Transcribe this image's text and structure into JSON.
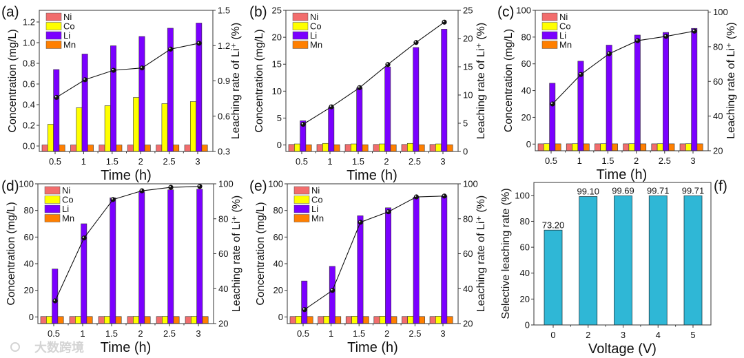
{
  "watermark": "大数跨境",
  "colors": {
    "Ni": "#f26d6d",
    "Co": "#ffff00",
    "Li": "#7a00ff",
    "Mn": "#ff7f00",
    "bar_f": "#2fb7d6",
    "line": "#111111"
  },
  "chart_data": [
    {
      "panel": "(a)",
      "type": "bar+line",
      "categories": [
        "0.5",
        "1",
        "1.5",
        "2",
        "2.5",
        "3"
      ],
      "xlabel": "Time (h)",
      "ylabel": "Concentration (mg/L)",
      "y2label": "Leaching rate of Li⁺ (%)",
      "ylim": [
        -0.053,
        1.313
      ],
      "y2lim": [
        0.3,
        1.5
      ],
      "yticks": [
        "0.0",
        "0.2",
        "0.4",
        "0.6",
        "0.8",
        "1.0",
        "1.2"
      ],
      "y2ticks": [
        "0.3",
        "0.6",
        "0.9",
        "1.2",
        "1.5"
      ],
      "legend": [
        "Ni",
        "Co",
        "Li",
        "Mn"
      ],
      "series": [
        {
          "name": "Ni",
          "values": [
            0.01,
            0.01,
            0.01,
            0.01,
            0.01,
            0.01
          ]
        },
        {
          "name": "Co",
          "values": [
            0.21,
            0.37,
            0.39,
            0.47,
            0.41,
            0.43
          ]
        },
        {
          "name": "Li",
          "values": [
            0.74,
            0.89,
            0.97,
            1.06,
            1.14,
            1.19
          ]
        },
        {
          "name": "Mn",
          "values": [
            0.01,
            0.01,
            0.01,
            0.01,
            0.01,
            0.01
          ]
        }
      ],
      "leaching_rate": [
        0.76,
        0.91,
        0.99,
        1.01,
        1.17,
        1.22
      ]
    },
    {
      "panel": "(b)",
      "type": "bar+line",
      "categories": [
        "0.5",
        "1",
        "1.5",
        "2",
        "2.5",
        "3"
      ],
      "xlabel": "Time (h)",
      "ylabel": "Concentration (mg/L)",
      "y2label": "Leaching rate of Li⁺ (%)",
      "ylim": [
        -1.2,
        25
      ],
      "y2lim": [
        0,
        25
      ],
      "yticks": [
        "0",
        "5",
        "10",
        "15",
        "20",
        "25"
      ],
      "y2ticks": [
        "0",
        "5",
        "10",
        "15",
        "20",
        "25"
      ],
      "legend": [
        "Ni",
        "Co",
        "Li",
        "Mn"
      ],
      "series": [
        {
          "name": "Ni",
          "values": [
            0.1,
            0.1,
            0.1,
            0.1,
            0.1,
            0.1
          ]
        },
        {
          "name": "Co",
          "values": [
            0.2,
            0.3,
            0.2,
            0.2,
            0.3,
            0.2
          ]
        },
        {
          "name": "Li",
          "values": [
            4.5,
            7.0,
            10.6,
            14.5,
            18.1,
            21.5
          ]
        },
        {
          "name": "Mn",
          "values": [
            0.05,
            0.05,
            0.05,
            0.05,
            0.05,
            0.05
          ]
        }
      ],
      "leaching_rate": [
        4.8,
        7.9,
        11.3,
        15.4,
        19.3,
        22.9
      ]
    },
    {
      "panel": "(c)",
      "type": "bar+line",
      "categories": [
        "0.5",
        "1",
        "1.5",
        "2",
        "2.5",
        "3"
      ],
      "xlabel": "Time (h)",
      "ylabel": "Concentration (mg/L)",
      "y2label": "Leaching rate of Li⁺ (%)",
      "ylim": [
        -5,
        100
      ],
      "y2lim": [
        20,
        101
      ],
      "yticks": [
        "0",
        "20",
        "40",
        "60",
        "80",
        "100"
      ],
      "y2ticks": [
        "20",
        "40",
        "60",
        "80",
        "100"
      ],
      "legend": [
        "Ni",
        "Co",
        "Li",
        "Mn"
      ],
      "series": [
        {
          "name": "Ni",
          "values": [
            0.2,
            0.2,
            0.2,
            0.2,
            0.2,
            0.2
          ]
        },
        {
          "name": "Co",
          "values": [
            0.3,
            0.3,
            0.3,
            0.3,
            0.3,
            0.3
          ]
        },
        {
          "name": "Li",
          "values": [
            45.5,
            62,
            74,
            81.5,
            83.5,
            86.5
          ]
        },
        {
          "name": "Mn",
          "values": [
            0.2,
            0.2,
            0.2,
            0.2,
            0.2,
            0.2
          ]
        }
      ],
      "leaching_rate": [
        47,
        64,
        76,
        83.5,
        86,
        89
      ]
    },
    {
      "panel": "(d)",
      "type": "bar+line",
      "categories": [
        "0.5",
        "1",
        "1.5",
        "2",
        "2.5",
        "3"
      ],
      "xlabel": "Time (h)",
      "ylabel": "Concentration (mg/L)",
      "y2label": "Leaching rate of Li⁺ (%)",
      "ylim": [
        -5,
        100
      ],
      "y2lim": [
        20,
        100
      ],
      "yticks": [
        "0",
        "20",
        "40",
        "60",
        "80",
        "100"
      ],
      "y2ticks": [
        "20",
        "40",
        "60",
        "80",
        "100"
      ],
      "legend": [
        "Ni",
        "Co",
        "Li",
        "Mn"
      ],
      "series": [
        {
          "name": "Ni",
          "values": [
            0.3,
            0.3,
            0.3,
            0.3,
            0.3,
            0.3
          ]
        },
        {
          "name": "Co",
          "values": [
            0.4,
            0.4,
            0.4,
            0.4,
            0.4,
            0.4
          ]
        },
        {
          "name": "Li",
          "values": [
            36,
            70,
            89.5,
            94,
            95.5,
            96
          ]
        },
        {
          "name": "Mn",
          "values": [
            0.3,
            0.3,
            0.3,
            0.3,
            0.3,
            0.3
          ]
        }
      ],
      "leaching_rate": [
        33,
        69,
        91,
        96,
        98,
        98.5
      ]
    },
    {
      "panel": "(e)",
      "type": "bar+line",
      "categories": [
        "0.5",
        "1",
        "1.5",
        "2",
        "2.5",
        "3"
      ],
      "xlabel": "Time (h)",
      "ylabel": "Concentration (mg/L)",
      "y2label": "Leaching rate of Li⁺ (%)",
      "ylim": [
        -5,
        100
      ],
      "y2lim": [
        20,
        100
      ],
      "yticks": [
        "0",
        "20",
        "40",
        "60",
        "80",
        "100"
      ],
      "y2ticks": [
        "20",
        "40",
        "60",
        "80",
        "100"
      ],
      "legend": [
        "Ni",
        "Co",
        "Li",
        "Mn"
      ],
      "series": [
        {
          "name": "Ni",
          "values": [
            0.3,
            0.3,
            0.3,
            0.3,
            0.3,
            0.3
          ]
        },
        {
          "name": "Co",
          "values": [
            0.5,
            0.5,
            0.5,
            0.5,
            0.5,
            0.5
          ]
        },
        {
          "name": "Li",
          "values": [
            27,
            38,
            76,
            82,
            90,
            91
          ]
        },
        {
          "name": "Mn",
          "values": [
            0.3,
            0.3,
            0.3,
            0.3,
            0.3,
            0.3
          ]
        }
      ],
      "leaching_rate": [
        28,
        39,
        78,
        84,
        92.5,
        93
      ]
    },
    {
      "panel": "(f)",
      "type": "bar",
      "categories": [
        "0",
        "2",
        "3",
        "4",
        "5"
      ],
      "xlabel": "Voltage (V)",
      "ylabel": "Selective leaching rate (%)",
      "ylim": [
        0,
        110
      ],
      "yticks": [
        "0",
        "20",
        "40",
        "60",
        "80",
        "100"
      ],
      "values": [
        73.2,
        99.1,
        99.69,
        99.71,
        99.71
      ],
      "data_labels": [
        "73.20",
        "99.10",
        "99.69",
        "99.71",
        "99.71"
      ]
    }
  ]
}
